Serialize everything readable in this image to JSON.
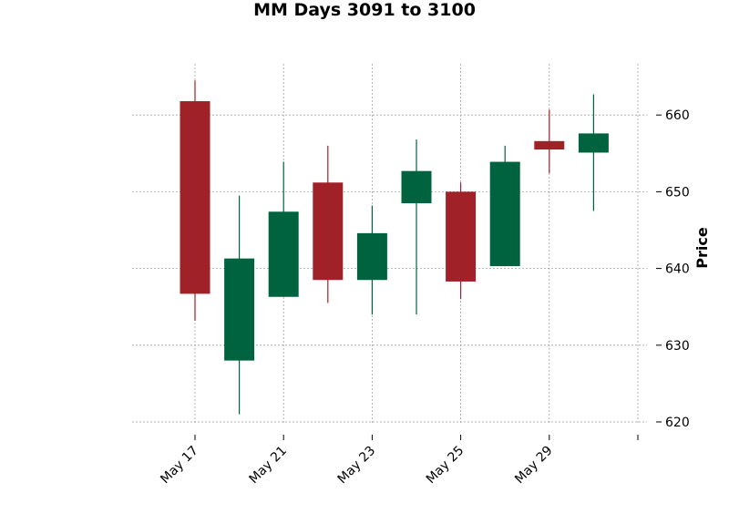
{
  "chart_data": {
    "type": "candlestick",
    "title": "MM Days 3091 to 3100",
    "ylabel": "Price",
    "ylim": [
      619,
      666
    ],
    "yticks": [
      620,
      630,
      640,
      650,
      660
    ],
    "ytick_labels": [
      "620",
      "630",
      "640",
      "650",
      "660"
    ],
    "xtick_labels": [
      "May 17",
      "May 21",
      "May 23",
      "May 25",
      "May 29",
      ""
    ],
    "grid": true,
    "colors": {
      "up": "#006340",
      "down": "#a02128"
    },
    "candles": [
      {
        "open": 661.8,
        "high": 664.5,
        "low": 633.2,
        "close": 636.7
      },
      {
        "open": 628.0,
        "high": 649.5,
        "low": 621.0,
        "close": 641.3
      },
      {
        "open": 636.3,
        "high": 653.9,
        "low": 636.3,
        "close": 647.4
      },
      {
        "open": 651.2,
        "high": 656.0,
        "low": 635.5,
        "close": 638.5
      },
      {
        "open": 638.5,
        "high": 648.2,
        "low": 634.0,
        "close": 644.6
      },
      {
        "open": 648.5,
        "high": 656.8,
        "low": 634.0,
        "close": 652.7
      },
      {
        "open": 650.0,
        "high": 651.2,
        "low": 636.0,
        "close": 638.3
      },
      {
        "open": 640.3,
        "high": 656.0,
        "low": 640.3,
        "close": 653.9
      },
      {
        "open": 656.6,
        "high": 660.7,
        "low": 652.4,
        "close": 655.5
      },
      {
        "open": 655.1,
        "high": 662.7,
        "low": 647.5,
        "close": 657.6
      }
    ]
  }
}
